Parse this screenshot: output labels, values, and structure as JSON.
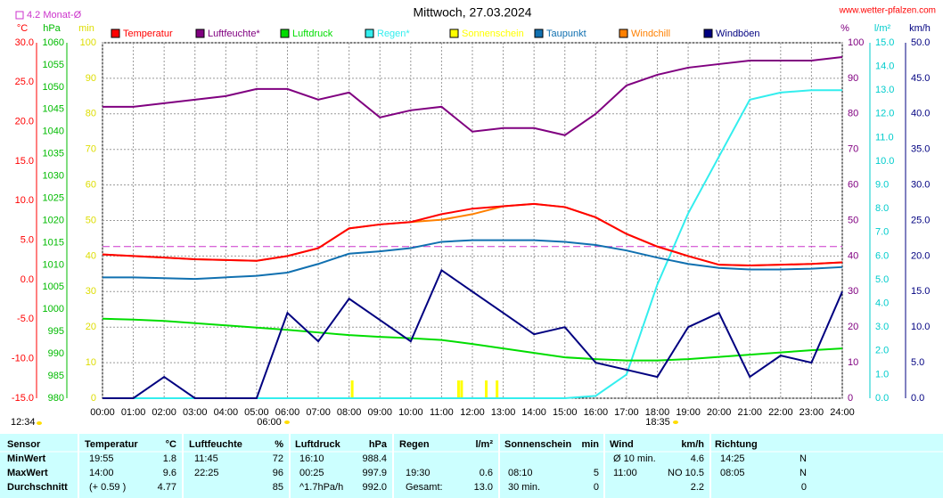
{
  "chart_data": {
    "type": "line",
    "title": "Mittwoch, 27.03.2024",
    "source": "www.wetter-pfalzen.com",
    "monthly_avg": {
      "value": 4.2,
      "label": "4.2 Monat-Ø",
      "color": "#cc33cc",
      "axis": 0
    },
    "sunrise": "06:00",
    "sunset": "18:35",
    "time": "12:34",
    "x": [
      0,
      1,
      2,
      3,
      4,
      5,
      6,
      7,
      8,
      9,
      10,
      11,
      12,
      13,
      14,
      15,
      16,
      17,
      18,
      19,
      20,
      21,
      22,
      23,
      24
    ],
    "xlim": [
      0,
      24
    ],
    "xticks": [
      {
        "value": 0,
        "label": "00:00"
      },
      {
        "value": 1,
        "label": "01:00"
      },
      {
        "value": 2,
        "label": "02:00"
      },
      {
        "value": 3,
        "label": "03:00"
      },
      {
        "value": 4,
        "label": "04:00"
      },
      {
        "value": 5,
        "label": "05:00"
      },
      {
        "value": 6,
        "label": "06:00"
      },
      {
        "value": 7,
        "label": "07:00"
      },
      {
        "value": 8,
        "label": "08:00"
      },
      {
        "value": 9,
        "label": "09:00"
      },
      {
        "value": 10,
        "label": "10:00"
      },
      {
        "value": 11,
        "label": "11:00"
      },
      {
        "value": 12,
        "label": "12:00"
      },
      {
        "value": 13,
        "label": "13:00"
      },
      {
        "value": 14,
        "label": "14:00"
      },
      {
        "value": 15,
        "label": "15:00"
      },
      {
        "value": 16,
        "label": "16:00"
      },
      {
        "value": 17,
        "label": "17:00"
      },
      {
        "value": 18,
        "label": "18:00"
      },
      {
        "value": 19,
        "label": "19:00"
      },
      {
        "value": 20,
        "label": "20:00"
      },
      {
        "value": 21,
        "label": "21:00"
      },
      {
        "value": 22,
        "label": "22:00"
      },
      {
        "value": 23,
        "label": "23:00"
      },
      {
        "value": 24,
        "label": "24:00"
      }
    ],
    "grid": true,
    "axes": [
      {
        "unit": "°C",
        "color": "#ff0000",
        "lim": [
          -15,
          30
        ],
        "ticks": [
          {
            "value": -15,
            "label": "-15.0"
          },
          {
            "value": -10,
            "label": "-10.0"
          },
          {
            "value": -5,
            "label": "-5.0"
          },
          {
            "value": 0,
            "label": "0.0"
          },
          {
            "value": 5,
            "label": "5.0"
          },
          {
            "value": 10,
            "label": "10.0"
          },
          {
            "value": 15,
            "label": "15.0"
          },
          {
            "value": 20,
            "label": "20.0"
          },
          {
            "value": 25,
            "label": "25.0"
          },
          {
            "value": 30,
            "label": "30.0"
          }
        ]
      },
      {
        "unit": "hPa",
        "color": "#00bb00",
        "lim": [
          980,
          1060
        ],
        "ticks": [
          980,
          985,
          990,
          995,
          1000,
          1005,
          1010,
          1015,
          1020,
          1025,
          1030,
          1035,
          1040,
          1045,
          1050,
          1055,
          1060
        ]
      },
      {
        "unit": "min",
        "color": "#dddd00",
        "lim": [
          0,
          100
        ],
        "ticks": [
          0,
          10,
          20,
          30,
          40,
          50,
          60,
          70,
          80,
          90,
          100
        ]
      },
      {
        "unit": "%",
        "color": "#800080",
        "lim": [
          0,
          100
        ],
        "ticks": [
          0,
          10,
          20,
          30,
          40,
          50,
          60,
          70,
          80,
          90,
          100
        ]
      },
      {
        "unit": "l/m²",
        "color": "#00cccc",
        "lim": [
          0,
          15
        ],
        "ticks": [
          {
            "value": 0,
            "label": "0.0"
          },
          {
            "value": 1,
            "label": "1.0"
          },
          {
            "value": 2,
            "label": "2.0"
          },
          {
            "value": 3,
            "label": "3.0"
          },
          {
            "value": 4,
            "label": "4.0"
          },
          {
            "value": 5,
            "label": "5.0"
          },
          {
            "value": 6,
            "label": "6.0"
          },
          {
            "value": 7,
            "label": "7.0"
          },
          {
            "value": 8,
            "label": "8.0"
          },
          {
            "value": 9,
            "label": "9.0"
          },
          {
            "value": 10,
            "label": "10.0"
          },
          {
            "value": 11,
            "label": "11.0"
          },
          {
            "value": 12,
            "label": "12.0"
          },
          {
            "value": 13,
            "label": "13.0"
          },
          {
            "value": 14,
            "label": "14.0"
          },
          {
            "value": 15,
            "label": "15.0"
          }
        ]
      },
      {
        "unit": "km/h",
        "color": "#000080",
        "lim": [
          0,
          50
        ],
        "ticks": [
          {
            "value": 0,
            "label": "0.0"
          },
          {
            "value": 5,
            "label": "5.0"
          },
          {
            "value": 10,
            "label": "10.0"
          },
          {
            "value": 15,
            "label": "15.0"
          },
          {
            "value": 20,
            "label": "20.0"
          },
          {
            "value": 25,
            "label": "25.0"
          },
          {
            "value": 30,
            "label": "30.0"
          },
          {
            "value": 35,
            "label": "35.0"
          },
          {
            "value": 40,
            "label": "40.0"
          },
          {
            "value": 45,
            "label": "45.0"
          },
          {
            "value": 50,
            "label": "50.0"
          }
        ]
      }
    ],
    "series": [
      {
        "name": "Temperatur",
        "color": "#ff0000",
        "axis": 0,
        "values": [
          3.2,
          3.0,
          2.8,
          2.6,
          2.5,
          2.4,
          3.0,
          4.0,
          6.5,
          7.0,
          7.3,
          8.3,
          9.0,
          9.3,
          9.6,
          9.2,
          7.9,
          5.8,
          4.2,
          3.0,
          1.9,
          1.8,
          1.9,
          2.0,
          2.2
        ]
      },
      {
        "name": "Luftfeuchte*",
        "color": "#800080",
        "axis": 3,
        "values": [
          82,
          82,
          83,
          84,
          85,
          87,
          87,
          84,
          86,
          79,
          81,
          82,
          75,
          76,
          76,
          74,
          80,
          88,
          91,
          93,
          94,
          95,
          95,
          95,
          96
        ]
      },
      {
        "name": "Luftdruck",
        "color": "#00dd00",
        "axis": 1,
        "values": [
          997.9,
          997.7,
          997.4,
          996.9,
          996.4,
          995.9,
          995.4,
          994.8,
          994.2,
          993.8,
          993.5,
          993.1,
          992.2,
          991.2,
          990.2,
          989.2,
          988.8,
          988.5,
          988.5,
          988.8,
          989.3,
          989.8,
          990.3,
          990.8,
          991.2
        ]
      },
      {
        "name": "Regen*",
        "color": "#33eeee",
        "axis": 4,
        "values": [
          0,
          0,
          0,
          0,
          0,
          0,
          0,
          0,
          0,
          0,
          0,
          0,
          0,
          0,
          0,
          0,
          0.1,
          1.0,
          4.8,
          7.8,
          10.2,
          12.6,
          12.9,
          13.0,
          13.0
        ]
      },
      {
        "name": "Sonnenschein",
        "color": "#ffff00",
        "axis": 2,
        "type": "bar",
        "x": [
          8.1,
          11.55,
          11.65,
          12.45,
          12.8
        ],
        "values": [
          5,
          5,
          5,
          5,
          5
        ]
      },
      {
        "name": "Taupunkt",
        "color": "#1070b0",
        "axis": 0,
        "values": [
          0.3,
          0.3,
          0.2,
          0.1,
          0.3,
          0.5,
          0.9,
          2.0,
          3.3,
          3.6,
          4.0,
          4.8,
          5.0,
          5.0,
          5.0,
          4.8,
          4.4,
          3.7,
          2.8,
          2.0,
          1.5,
          1.3,
          1.3,
          1.4,
          1.6
        ]
      },
      {
        "name": "Windchill",
        "color": "#ff8000",
        "axis": 0,
        "values": [
          3.2,
          3.0,
          2.8,
          2.6,
          2.5,
          2.4,
          3.0,
          4.0,
          6.5,
          7.0,
          7.3,
          7.6,
          8.3,
          9.3,
          9.6,
          9.2,
          7.9,
          5.8,
          4.2,
          3.0,
          1.9,
          1.8,
          1.9,
          2.0,
          2.2
        ]
      },
      {
        "name": "Windböen",
        "color": "#000080",
        "axis": 5,
        "values": [
          0,
          0,
          3,
          0,
          0,
          0,
          12,
          8,
          14,
          11,
          8,
          18,
          15,
          12,
          9,
          10,
          5,
          4,
          3,
          10,
          12,
          3,
          6,
          5,
          15
        ]
      }
    ]
  },
  "table": {
    "header": [
      "Sensor",
      "Temperatur",
      "°C",
      "Luftfeuchte",
      "%",
      "Luftdruck",
      "hPa",
      "Regen",
      "l/m²",
      "Sonnenschein",
      "min",
      "Wind",
      "km/h",
      "Richtung"
    ],
    "rows": [
      [
        "MinWert",
        "19:55",
        "1.8",
        "11:45",
        "72",
        "16:10",
        "988.4",
        null,
        null,
        null,
        null,
        "Ø 10 min.",
        "4.6",
        "14:25",
        "N"
      ],
      [
        "MaxWert",
        "14:00",
        "9.6",
        "22:25",
        "96",
        "00:25",
        "997.9",
        "19:30",
        "0.6",
        "08:10",
        "5",
        "11:00",
        "NO 10.5",
        "08:05",
        "N"
      ],
      [
        "Durchschnitt",
        "(+ 0.59 )",
        "4.77",
        null,
        "85",
        "^1.7hPa/h",
        "992.0",
        "Gesamt:",
        "13.0",
        "30 min.",
        "0",
        null,
        "2.2",
        null,
        "0"
      ]
    ]
  }
}
